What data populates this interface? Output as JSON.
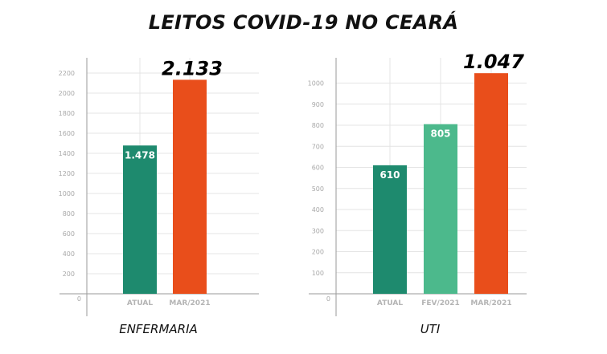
{
  "title": "LEITOS COVID-19 NO CEARÁ",
  "colors": {
    "atual": "#1e8a6e",
    "fev": "#4cb98c",
    "mar": "#e94e1b",
    "grid": "#e4e4e4",
    "axis": "#9a9a9a"
  },
  "chart_data": [
    {
      "type": "bar",
      "title": "ENFERMARIA",
      "categories": [
        "ATUAL",
        "MAR/2021"
      ],
      "values": [
        1478,
        2133
      ],
      "value_labels": [
        "1.478",
        "2.133"
      ],
      "label_styles": [
        "inside",
        "top"
      ],
      "bar_colors": [
        "atual",
        "mar"
      ],
      "ylim": [
        0,
        2300
      ],
      "yticks": [
        0,
        200,
        400,
        600,
        800,
        1000,
        1200,
        1400,
        1600,
        1800,
        2000,
        2200
      ],
      "grid": true,
      "xlabel": "",
      "ylabel": ""
    },
    {
      "type": "bar",
      "title": "UTI",
      "categories": [
        "ATUAL",
        "FEV/2021",
        "MAR/2021"
      ],
      "values": [
        610,
        805,
        1047
      ],
      "value_labels": [
        "610",
        "805",
        "1.047"
      ],
      "label_styles": [
        "inside",
        "inside",
        "top"
      ],
      "bar_colors": [
        "atual",
        "fev",
        "mar"
      ],
      "ylim": [
        0,
        1100
      ],
      "yticks": [
        0,
        100,
        200,
        300,
        400,
        500,
        600,
        700,
        800,
        900,
        1000
      ],
      "grid": true,
      "xlabel": "",
      "ylabel": ""
    }
  ]
}
